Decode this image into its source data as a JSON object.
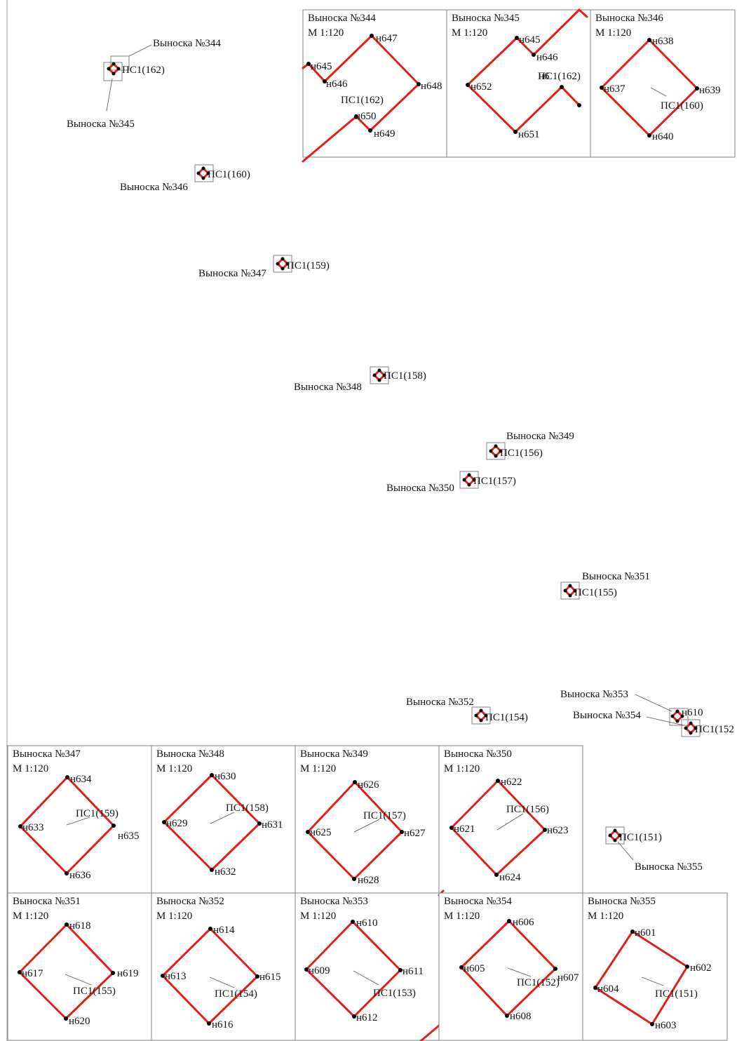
{
  "colors": {
    "boundary": "#e0201b",
    "point": "#000000",
    "frame": "#808080",
    "leader": "#555555"
  },
  "scale_label": "М 1:120",
  "overview": {
    "plots": [
      {
        "label": "ПС1(162)"
      },
      {
        "label": "ПС1(160)"
      },
      {
        "label": "ПС1(159)"
      },
      {
        "label": "ПС1(158)"
      },
      {
        "label": "ПС1(156)"
      },
      {
        "label": "ПС1(157)"
      },
      {
        "label": "ПС1(155)"
      },
      {
        "label": "ПС1(154)"
      },
      {
        "label": "н610"
      },
      {
        "label": "ПС1(152"
      },
      {
        "label": "ПС1(151)"
      }
    ],
    "callouts": [
      "Выноска №344",
      "Выноска №345",
      "Выноска №346",
      "Выноска №347",
      "Выноска №348",
      "Выноска №349",
      "Выноска №350",
      "Выноска №351",
      "Выноска №352",
      "Выноска №353",
      "Выноска №354",
      "Выноска №355"
    ]
  },
  "insets": [
    {
      "title": "Выноска №344",
      "parcel": "ПС1(162)",
      "points": [
        "н645",
        "н646",
        "н647",
        "н648",
        "н649",
        "н650"
      ]
    },
    {
      "title": "Выноска №345",
      "parcel": "ПС1(162)",
      "points": [
        "н645",
        "н646",
        "н652",
        "н651",
        "н6"
      ]
    },
    {
      "title": "Выноска №346",
      "parcel": "ПС1(160)",
      "points": [
        "н637",
        "н638",
        "н639",
        "н640"
      ]
    },
    {
      "title": "Выноска №347",
      "parcel": "ПС1(159)",
      "points": [
        "н633",
        "н634",
        "н635",
        "н636"
      ]
    },
    {
      "title": "Выноска №348",
      "parcel": "ПС1(158)",
      "points": [
        "н629",
        "н630",
        "н631",
        "н632"
      ]
    },
    {
      "title": "Выноска №349",
      "parcel": "ПС1(157)",
      "points": [
        "н625",
        "н626",
        "н627",
        "н628"
      ]
    },
    {
      "title": "Выноска №350",
      "parcel": "ПС1(156)",
      "points": [
        "н621",
        "н622",
        "н623",
        "н624"
      ]
    },
    {
      "title": "Выноска №351",
      "parcel": "ПС1(155)",
      "points": [
        "н617",
        "н618",
        "н619",
        "н620"
      ]
    },
    {
      "title": "Выноска №352",
      "parcel": "ПС1(154)",
      "points": [
        "н613",
        "н614",
        "н615",
        "н616"
      ]
    },
    {
      "title": "Выноска №353",
      "parcel": "ПС1(153)",
      "points": [
        "н609",
        "н610",
        "н611",
        "н612"
      ]
    },
    {
      "title": "Выноска №354",
      "parcel": "ПС1(152)",
      "points": [
        "н605",
        "н606",
        "н607",
        "н608"
      ]
    },
    {
      "title": "Выноска №355",
      "parcel": "ПС1(151)",
      "points": [
        "н604",
        "н601",
        "н602",
        "н603"
      ]
    }
  ]
}
